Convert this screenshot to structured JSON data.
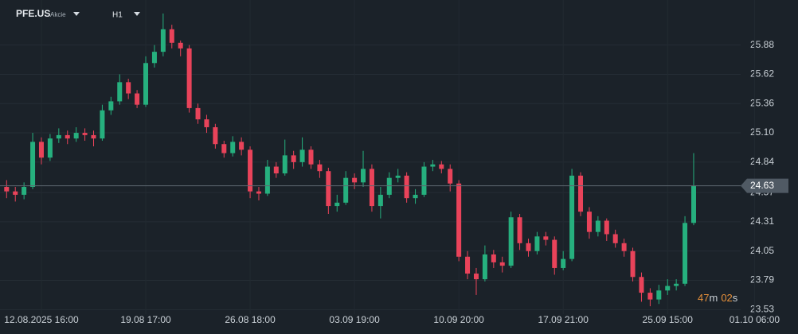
{
  "header": {
    "symbol": "PFE.US",
    "asset_class": "Akcie",
    "timeframe": "H1"
  },
  "countdown": {
    "minutes": "47",
    "minutes_unit": "m",
    "seconds": "02",
    "seconds_unit": "s"
  },
  "chart_data": {
    "type": "candlestick",
    "up_color": "#26b07e",
    "down_color": "#e9435a",
    "grid": true,
    "ylim": [
      23.49,
      26.28
    ],
    "yticks": [
      25.88,
      25.62,
      25.36,
      {
        "value": 25.1,
        "label": "25.10"
      },
      24.84,
      24.57,
      24.31,
      24.05,
      23.79,
      23.53
    ],
    "last_price": 24.63,
    "categories": [
      null,
      null,
      null,
      null,
      "12.08.2025 16:00",
      null,
      null,
      null,
      null,
      null,
      null,
      null,
      null,
      null,
      null,
      null,
      "19.08 17:00",
      null,
      null,
      null,
      null,
      null,
      null,
      null,
      null,
      null,
      null,
      null,
      "26.08 18:00",
      null,
      null,
      null,
      null,
      null,
      null,
      null,
      null,
      null,
      null,
      null,
      "03.09 19:00",
      null,
      null,
      null,
      null,
      null,
      null,
      null,
      null,
      null,
      null,
      null,
      "10.09 20:00",
      null,
      null,
      null,
      null,
      null,
      null,
      null,
      null,
      null,
      null,
      null,
      "17.09 21:00",
      null,
      null,
      null,
      null,
      null,
      null,
      null,
      null,
      null,
      null,
      null,
      "25.09 15:00",
      null,
      null,
      null,
      null,
      null,
      null,
      null,
      null,
      null,
      "01.10 06:00",
      null
    ],
    "open": [
      24.62,
      24.58,
      24.55,
      24.62,
      25.02,
      24.88,
      25.05,
      25.08,
      25.05,
      25.1,
      25.08,
      25.05,
      25.3,
      25.38,
      25.55,
      25.45,
      25.35,
      25.72,
      25.82,
      26.02,
      25.9,
      25.85,
      25.32,
      25.22,
      25.15,
      25.0,
      24.92,
      25.02,
      24.95,
      24.58,
      24.56,
      24.8,
      24.74,
      24.9,
      24.84,
      24.95,
      24.82,
      24.76,
      24.45,
      24.48,
      24.7,
      24.66,
      24.78,
      24.45,
      24.55,
      24.7,
      24.72,
      24.52,
      24.55,
      24.8,
      24.82,
      24.78,
      24.65,
      24.0,
      23.85,
      23.8,
      24.02,
      23.95,
      23.92,
      24.35,
      24.12,
      24.05,
      24.18,
      24.15,
      23.9,
      23.98,
      24.72,
      24.4,
      24.22,
      24.32,
      24.2,
      24.12,
      24.05,
      23.82,
      23.68,
      23.62,
      23.7,
      23.74,
      23.76,
      24.3,
      null,
      null,
      null,
      null,
      null,
      null,
      null,
      null
    ],
    "high": [
      24.68,
      24.62,
      24.66,
      25.1,
      25.06,
      25.09,
      25.14,
      25.12,
      25.15,
      25.14,
      25.12,
      25.35,
      25.42,
      25.62,
      25.58,
      25.48,
      25.78,
      25.88,
      26.16,
      26.06,
      25.92,
      25.88,
      25.36,
      25.26,
      25.18,
      25.03,
      25.07,
      25.06,
      24.98,
      24.62,
      24.86,
      24.84,
      25.04,
      24.94,
      25.06,
      24.98,
      24.86,
      24.79,
      24.55,
      24.76,
      24.74,
      24.94,
      24.82,
      24.62,
      24.75,
      24.78,
      24.75,
      24.6,
      24.84,
      24.86,
      24.85,
      24.82,
      24.68,
      24.05,
      23.9,
      24.1,
      24.06,
      24.0,
      24.4,
      24.38,
      24.16,
      24.22,
      24.22,
      24.18,
      24.05,
      24.78,
      24.75,
      24.44,
      24.36,
      24.34,
      24.24,
      24.16,
      24.08,
      23.86,
      23.72,
      23.75,
      23.8,
      23.8,
      24.36,
      24.92,
      null,
      null,
      null,
      null,
      null,
      null,
      null,
      null
    ],
    "low": [
      24.52,
      24.49,
      24.51,
      24.6,
      24.82,
      24.85,
      25.01,
      25.0,
      25.02,
      25.03,
      24.98,
      25.03,
      25.26,
      25.35,
      25.4,
      25.32,
      25.33,
      25.68,
      25.78,
      25.85,
      25.78,
      25.28,
      25.18,
      25.1,
      24.96,
      24.88,
      24.89,
      24.9,
      24.52,
      24.5,
      24.54,
      24.7,
      24.72,
      24.78,
      24.8,
      24.78,
      24.7,
      24.38,
      24.4,
      24.46,
      24.6,
      24.62,
      24.4,
      24.34,
      24.52,
      24.66,
      24.48,
      24.47,
      24.53,
      24.76,
      24.74,
      24.58,
      23.96,
      23.8,
      23.66,
      23.78,
      23.9,
      23.86,
      23.9,
      24.06,
      24.0,
      24.02,
      24.1,
      23.84,
      23.88,
      23.96,
      24.36,
      24.16,
      24.18,
      24.14,
      24.08,
      24.0,
      23.78,
      23.6,
      23.56,
      23.58,
      23.66,
      23.7,
      23.74,
      24.28,
      null,
      null,
      null,
      null,
      null,
      null,
      null,
      null
    ],
    "close": [
      24.58,
      24.55,
      24.62,
      25.02,
      24.88,
      25.05,
      25.08,
      25.05,
      25.1,
      25.08,
      25.05,
      25.3,
      25.38,
      25.55,
      25.45,
      25.35,
      25.72,
      25.82,
      26.02,
      25.9,
      25.85,
      25.32,
      25.22,
      25.15,
      25.0,
      24.92,
      25.02,
      24.95,
      24.58,
      24.56,
      24.8,
      24.74,
      24.9,
      24.84,
      24.95,
      24.82,
      24.76,
      24.45,
      24.48,
      24.7,
      24.66,
      24.78,
      24.45,
      24.55,
      24.7,
      24.72,
      24.52,
      24.55,
      24.8,
      24.82,
      24.78,
      24.65,
      24.0,
      23.85,
      23.8,
      24.02,
      23.95,
      23.92,
      24.35,
      24.12,
      24.05,
      24.18,
      24.15,
      23.9,
      23.98,
      24.72,
      24.4,
      24.22,
      24.32,
      24.2,
      24.12,
      24.05,
      23.82,
      23.68,
      23.62,
      23.7,
      23.74,
      23.76,
      24.3,
      24.63,
      null,
      null,
      null,
      null,
      null,
      null,
      null,
      null
    ]
  }
}
